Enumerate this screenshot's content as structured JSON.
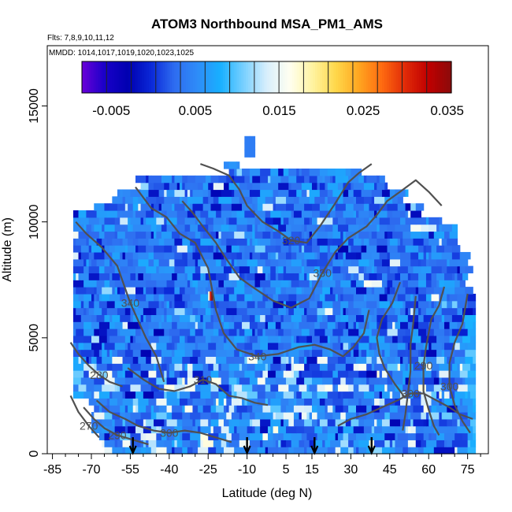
{
  "chart_data": {
    "type": "heatmap",
    "title": "ATOM3 Northbound MSA_PM1_AMS",
    "flights_note": "Flts: 7,8,9,10,11,12",
    "dates_note": "MMDD: 1014,1017,1019,1020,1023,1025",
    "xlabel": "Latitude (deg N)",
    "ylabel": "Altitude (m)",
    "xlim": [
      -87,
      83
    ],
    "ylim": [
      0,
      17600
    ],
    "x_ticks": [
      -85,
      -70,
      -55,
      -40,
      -25,
      -10,
      5,
      15,
      30,
      45,
      60,
      75
    ],
    "x_tick_labels": [
      "-85",
      "-70",
      "-55",
      "-40",
      "-25",
      "-10",
      "5",
      "15",
      "30",
      "45",
      "60",
      "75"
    ],
    "y_ticks": [
      0,
      5000,
      10000,
      15000
    ],
    "y_tick_labels": [
      "0",
      "5000",
      "10000",
      "15000"
    ],
    "colorbar": {
      "min": -0.0085,
      "max": 0.0355,
      "tick_values": [
        -0.005,
        0.005,
        0.015,
        0.025,
        0.035
      ],
      "tick_labels": [
        "-0.005",
        "0.005",
        "0.015",
        "0.025",
        "0.035"
      ],
      "colors": [
        "#6a00d8",
        "#1800c8",
        "#0000b0",
        "#0a28d8",
        "#2e6cf0",
        "#2e8cf8",
        "#18b0ff",
        "#78d0ff",
        "#d8eefc",
        "#fffff0",
        "#fff3a0",
        "#ffd84a",
        "#ffa520",
        "#ff6a10",
        "#e02a08",
        "#c00000",
        "#8a0a0a"
      ]
    },
    "profile_latitudes": [
      -54,
      -10,
      16,
      38
    ],
    "theta_contours": [
      {
        "label": "340",
        "points": [
          [
            -76,
            10000
          ],
          [
            -72,
            9500
          ],
          [
            -66,
            8900
          ],
          [
            -60,
            8100
          ],
          [
            -55,
            6500
          ],
          [
            -49,
            5000
          ],
          [
            -45,
            4200
          ],
          [
            -42,
            3100
          ]
        ]
      },
      {
        "label": "340",
        "points": [
          [
            -53,
            11500
          ],
          [
            -47,
            10600
          ],
          [
            -41,
            10200
          ],
          [
            -36,
            9500
          ],
          [
            -30,
            9100
          ],
          [
            -25,
            8000
          ],
          [
            -22,
            6200
          ],
          [
            -19,
            5200
          ],
          [
            -14,
            4500
          ],
          [
            -6,
            4200
          ],
          [
            2,
            4300
          ],
          [
            10,
            4600
          ],
          [
            16,
            4700
          ],
          [
            22,
            4500
          ],
          [
            27,
            4200
          ],
          [
            31,
            4600
          ],
          [
            35,
            5200
          ],
          [
            37,
            6200
          ]
        ]
      },
      {
        "label": "330",
        "points": [
          [
            -35,
            10900
          ],
          [
            -31,
            10400
          ],
          [
            -27,
            9800
          ],
          [
            -22,
            9100
          ],
          [
            -18,
            8400
          ],
          [
            -13,
            7600
          ],
          [
            -8,
            7200
          ],
          [
            0,
            6600
          ],
          [
            7,
            6300
          ],
          [
            14,
            6700
          ],
          [
            19,
            7800
          ],
          [
            24,
            8700
          ],
          [
            29,
            9300
          ],
          [
            36,
            9800
          ],
          [
            40,
            10300
          ],
          [
            44,
            10900
          ],
          [
            49,
            11300
          ],
          [
            55,
            11800
          ],
          [
            60,
            11300
          ],
          [
            65,
            10700
          ]
        ]
      },
      {
        "label": "320",
        "points": [
          [
            -28,
            12500
          ],
          [
            -23,
            12300
          ],
          [
            -17,
            12000
          ],
          [
            -13,
            11400
          ],
          [
            -10,
            10700
          ],
          [
            -4,
            10000
          ],
          [
            2,
            9600
          ],
          [
            7,
            9200
          ],
          [
            13,
            9100
          ],
          [
            18,
            9800
          ],
          [
            24,
            10800
          ],
          [
            29,
            11700
          ],
          [
            33,
            12100
          ],
          [
            38,
            12500
          ]
        ]
      },
      {
        "label": "310",
        "points": [
          [
            -56,
            3700
          ],
          [
            -50,
            3200
          ],
          [
            -44,
            2800
          ],
          [
            -38,
            2700
          ],
          [
            -32,
            2900
          ],
          [
            -27,
            3200
          ],
          [
            -22,
            3000
          ],
          [
            -17,
            2500
          ],
          [
            -12,
            2400
          ],
          [
            -7,
            2200
          ],
          [
            -2,
            2100
          ]
        ]
      },
      {
        "label": "300",
        "points": [
          [
            -68,
            2300
          ],
          [
            -63,
            1800
          ],
          [
            -57,
            1500
          ],
          [
            -52,
            1200
          ],
          [
            -46,
            1000
          ],
          [
            -40,
            900
          ],
          [
            -34,
            1000
          ],
          [
            -28,
            900
          ],
          [
            -22,
            700
          ],
          [
            -16,
            500
          ]
        ]
      },
      {
        "label": "300",
        "points": [
          [
            25,
            1200
          ],
          [
            30,
            1500
          ],
          [
            36,
            1700
          ],
          [
            42,
            2000
          ],
          [
            48,
            2300
          ],
          [
            53,
            2600
          ],
          [
            58,
            2600
          ],
          [
            63,
            2300
          ],
          [
            68,
            2000
          ],
          [
            72,
            1700
          ],
          [
            77,
            1500
          ]
        ]
      },
      {
        "label": "290",
        "points": [
          [
            -73,
            2000
          ],
          [
            -69,
            1500
          ],
          [
            -65,
            1100
          ],
          [
            -60,
            800
          ],
          [
            -54,
            600
          ],
          [
            -48,
            400
          ]
        ]
      },
      {
        "label": "280",
        "points": [
          [
            -78,
            4800
          ],
          [
            -75,
            4300
          ],
          [
            -71,
            3800
          ],
          [
            -67,
            3400
          ],
          [
            -63,
            3100
          ],
          [
            -58,
            2900
          ]
        ]
      },
      {
        "label": "270",
        "points": [
          [
            -78,
            2500
          ],
          [
            -75,
            1800
          ],
          [
            -71,
            1200
          ],
          [
            -67,
            700
          ]
        ]
      },
      {
        "label": "290",
        "points": [
          [
            66,
            7200
          ],
          [
            64,
            6400
          ],
          [
            61,
            5800
          ],
          [
            59,
            4600
          ],
          [
            58,
            3800
          ],
          [
            58,
            2700
          ],
          [
            60,
            1900
          ],
          [
            62,
            1200
          ],
          [
            64,
            800
          ]
        ]
      },
      {
        "label": "300",
        "points": [
          [
            75,
            6900
          ],
          [
            73,
            5600
          ],
          [
            70,
            4800
          ],
          [
            68,
            3900
          ],
          [
            68,
            2900
          ],
          [
            70,
            2100
          ],
          [
            73,
            1400
          ],
          [
            76,
            900
          ]
        ]
      },
      {
        "label": "",
        "points": [
          [
            49,
            7400
          ],
          [
            46,
            6500
          ],
          [
            42,
            5800
          ],
          [
            40,
            5000
          ],
          [
            41,
            4300
          ],
          [
            43,
            3700
          ],
          [
            47,
            3000
          ],
          [
            51,
            2400
          ]
        ]
      },
      {
        "label": "",
        "points": [
          [
            55,
            6800
          ],
          [
            54,
            5600
          ],
          [
            53,
            4700
          ],
          [
            53,
            3600
          ],
          [
            52,
            2600
          ],
          [
            51,
            1700
          ],
          [
            50,
            1000
          ]
        ]
      }
    ]
  }
}
